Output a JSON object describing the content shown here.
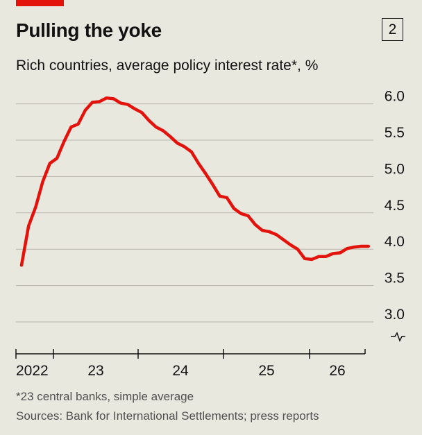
{
  "header": {
    "title": "Pulling the yoke",
    "chart_number": "2",
    "subtitle": "Rich countries, average policy interest rate*, %"
  },
  "footer": {
    "footnote": "*23 central banks, simple average",
    "source": "Sources: Bank for International Settlements; press reports"
  },
  "colors": {
    "line": "#e3120b",
    "accent": "#e3120b",
    "background": "#e9e8df",
    "grid": "#b7b6ad"
  },
  "chart_data": {
    "type": "line",
    "title": "Pulling the yoke",
    "subtitle": "Rich countries, average policy interest rate*, %",
    "ylim": [
      3.0,
      6.0
    ],
    "y_axis_side": "right",
    "y_axis_broken": true,
    "grid": "horizontal",
    "y_ticks": [
      "6.0",
      "5.5",
      "5.0",
      "4.5",
      "4.0",
      "3.5",
      "3.0"
    ],
    "x_tick_labels": [
      "2022",
      "23",
      "24",
      "25",
      "26"
    ],
    "series": [
      {
        "x": [
          "2022-01",
          "2022-02",
          "2022-03",
          "2022-04",
          "2022-05",
          "2022-06",
          "2022-07",
          "2022-08",
          "2022-09",
          "2022-10",
          "2022-11",
          "2022-12",
          "2023-01",
          "2023-02",
          "2023-03",
          "2023-04",
          "2023-05",
          "2023-06",
          "2023-07",
          "2023-08",
          "2023-09",
          "2023-10",
          "2023-11",
          "2023-12",
          "2024-01",
          "2024-02",
          "2024-03",
          "2024-04",
          "2024-05",
          "2024-06",
          "2024-07",
          "2024-08",
          "2024-09",
          "2024-10",
          "2024-11",
          "2024-12",
          "2025-01",
          "2025-02",
          "2025-03",
          "2025-04",
          "2025-05",
          "2025-06",
          "2025-07",
          "2025-08",
          "2025-09",
          "2025-10",
          "2025-11",
          "2025-12",
          "2026-01",
          "2026-02",
          "2026-03",
          "2026-04",
          "2026-05",
          "2026-06",
          "2026-07",
          "2026-08",
          "2026-09",
          "2026-10",
          "2026-11",
          "2026-12"
        ],
        "values": [
          3.78,
          4.32,
          4.58,
          4.93,
          5.18,
          5.25,
          5.48,
          5.68,
          5.72,
          5.91,
          6.02,
          6.03,
          6.08,
          6.07,
          6.01,
          5.99,
          5.93,
          5.88,
          5.77,
          5.68,
          5.63,
          5.55,
          5.46,
          5.41,
          5.34,
          5.18,
          5.04,
          4.89,
          4.73,
          4.71,
          4.56,
          4.49,
          4.46,
          4.34,
          4.26,
          4.24,
          4.2,
          4.13,
          4.06,
          4.0,
          3.87,
          3.86,
          3.9,
          3.9,
          3.94,
          3.95,
          4.01,
          4.03,
          4.04,
          4.04,
          4.04,
          4.04,
          4.04,
          4.04,
          4.04,
          4.04,
          4.04,
          4.04,
          4.04,
          4.04
        ]
      }
    ]
  }
}
